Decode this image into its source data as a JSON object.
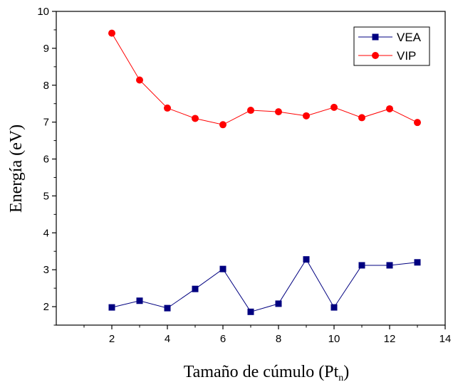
{
  "chart_data": {
    "type": "line",
    "xlabel_main": "Tamaño de cúmulo (Pt",
    "xlabel_sub": "n",
    "xlabel_close": ")",
    "ylabel": "Energía (eV)",
    "xlim": [
      0,
      14
    ],
    "ylim": [
      1.5,
      10
    ],
    "x_ticks": [
      "2",
      "4",
      "6",
      "8",
      "10",
      "12",
      "14"
    ],
    "y_ticks": [
      "2",
      "3",
      "4",
      "5",
      "6",
      "7",
      "8",
      "9",
      "10"
    ],
    "legend_position": "top-right",
    "grid": false,
    "x": [
      2,
      3,
      4,
      5,
      6,
      7,
      8,
      9,
      10,
      11,
      12,
      13
    ],
    "series": [
      {
        "name": "VEA",
        "marker": "square",
        "color": "#000080",
        "values": [
          1.98,
          2.16,
          1.96,
          2.48,
          3.02,
          1.86,
          2.08,
          3.28,
          1.98,
          3.12,
          3.12,
          3.2
        ]
      },
      {
        "name": "VIP",
        "marker": "circle",
        "color": "#ff0000",
        "values": [
          9.41,
          8.14,
          7.38,
          7.1,
          6.93,
          7.32,
          7.28,
          7.17,
          7.4,
          7.12,
          7.36,
          6.99
        ]
      }
    ]
  }
}
